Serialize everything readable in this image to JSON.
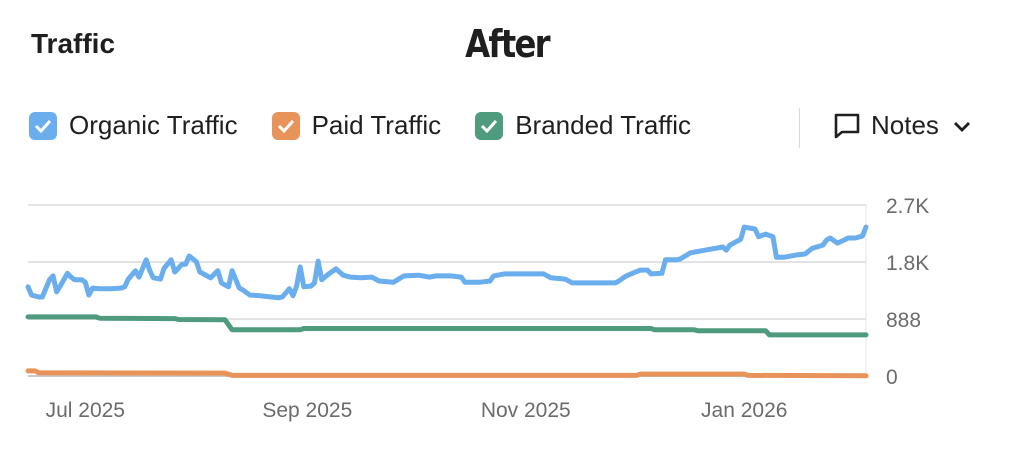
{
  "header": {
    "title": "Traffic",
    "overlay_label": "After"
  },
  "legend": [
    {
      "label": "Organic Traffic",
      "color": "#6aaeee",
      "checked": true,
      "icon": "check-icon"
    },
    {
      "label": "Paid Traffic",
      "color": "#e8935a",
      "checked": true,
      "icon": "check-icon"
    },
    {
      "label": "Branded Traffic",
      "color": "#4f9b7e",
      "checked": true,
      "icon": "check-icon"
    }
  ],
  "notes": {
    "label": "Notes",
    "icon": "comment-icon",
    "chevron": "chevron-down-icon"
  },
  "chart_data": {
    "type": "line",
    "title": "Traffic",
    "x_unit": "days since 2025-06-15",
    "xlim": [
      0,
      234
    ],
    "ylim": [
      0,
      2664
    ],
    "y_ticks": [
      {
        "value": 0,
        "label": "0"
      },
      {
        "value": 888,
        "label": "888"
      },
      {
        "value": 1776,
        "label": "1.8K"
      },
      {
        "value": 2664,
        "label": "2.7K"
      }
    ],
    "x_ticks": [
      {
        "value": 16,
        "label": "Jul 2025"
      },
      {
        "value": 78,
        "label": "Sep 2025"
      },
      {
        "value": 139,
        "label": "Nov 2025"
      },
      {
        "value": 200,
        "label": "Jan 2026"
      }
    ],
    "grid": true,
    "legend_position": "top-left",
    "series": [
      {
        "name": "Organic Traffic",
        "color": "#6aaeee",
        "points": [
          [
            0,
            1390
          ],
          [
            1,
            1260
          ],
          [
            3,
            1230
          ],
          [
            4,
            1230
          ],
          [
            6,
            1500
          ],
          [
            7,
            1560
          ],
          [
            8,
            1310
          ],
          [
            9,
            1400
          ],
          [
            11,
            1600
          ],
          [
            12,
            1540
          ],
          [
            13,
            1500
          ],
          [
            15,
            1500
          ],
          [
            16,
            1460
          ],
          [
            17,
            1260
          ],
          [
            18,
            1370
          ],
          [
            20,
            1360
          ],
          [
            23,
            1360
          ],
          [
            26,
            1370
          ],
          [
            27,
            1390
          ],
          [
            28,
            1510
          ],
          [
            30,
            1640
          ],
          [
            31,
            1540
          ],
          [
            33,
            1810
          ],
          [
            34,
            1640
          ],
          [
            35,
            1530
          ],
          [
            37,
            1510
          ],
          [
            38,
            1680
          ],
          [
            40,
            1810
          ],
          [
            41,
            1620
          ],
          [
            43,
            1740
          ],
          [
            44,
            1740
          ],
          [
            45,
            1870
          ],
          [
            47,
            1780
          ],
          [
            48,
            1620
          ],
          [
            51,
            1530
          ],
          [
            53,
            1640
          ],
          [
            54,
            1450
          ],
          [
            56,
            1390
          ],
          [
            57,
            1640
          ],
          [
            59,
            1370
          ],
          [
            60,
            1340
          ],
          [
            62,
            1260
          ],
          [
            65,
            1250
          ],
          [
            68,
            1230
          ],
          [
            70,
            1220
          ],
          [
            71,
            1230
          ],
          [
            73,
            1360
          ],
          [
            74,
            1250
          ],
          [
            75,
            1400
          ],
          [
            76,
            1700
          ],
          [
            77,
            1390
          ],
          [
            79,
            1400
          ],
          [
            80,
            1450
          ],
          [
            81,
            1790
          ],
          [
            82,
            1500
          ],
          [
            84,
            1590
          ],
          [
            86,
            1670
          ],
          [
            88,
            1570
          ],
          [
            90,
            1540
          ],
          [
            93,
            1530
          ],
          [
            96,
            1540
          ],
          [
            98,
            1480
          ],
          [
            102,
            1460
          ],
          [
            105,
            1560
          ],
          [
            109,
            1570
          ],
          [
            112,
            1540
          ],
          [
            114,
            1560
          ],
          [
            118,
            1560
          ],
          [
            121,
            1540
          ],
          [
            122,
            1460
          ],
          [
            126,
            1460
          ],
          [
            129,
            1480
          ],
          [
            130,
            1560
          ],
          [
            133,
            1590
          ],
          [
            144,
            1590
          ],
          [
            146,
            1530
          ],
          [
            150,
            1510
          ],
          [
            152,
            1450
          ],
          [
            160,
            1450
          ],
          [
            164,
            1450
          ],
          [
            165,
            1480
          ],
          [
            167,
            1560
          ],
          [
            171,
            1650
          ],
          [
            173,
            1650
          ],
          [
            174,
            1590
          ],
          [
            177,
            1600
          ],
          [
            178,
            1810
          ],
          [
            181,
            1810
          ],
          [
            182,
            1820
          ],
          [
            185,
            1920
          ],
          [
            188,
            1950
          ],
          [
            191,
            1980
          ],
          [
            194,
            2010
          ],
          [
            195,
            1960
          ],
          [
            196,
            2040
          ],
          [
            199,
            2130
          ],
          [
            200,
            2320
          ],
          [
            203,
            2290
          ],
          [
            204,
            2170
          ],
          [
            206,
            2210
          ],
          [
            208,
            2170
          ],
          [
            209,
            1850
          ],
          [
            211,
            1850
          ],
          [
            215,
            1890
          ],
          [
            217,
            1900
          ],
          [
            219,
            1990
          ],
          [
            222,
            2040
          ],
          [
            223,
            2120
          ],
          [
            224,
            2150
          ],
          [
            226,
            2070
          ],
          [
            228,
            2120
          ],
          [
            229,
            2150
          ],
          [
            231,
            2150
          ],
          [
            233,
            2180
          ],
          [
            234,
            2320
          ]
        ]
      },
      {
        "name": "Paid Traffic",
        "color": "#e8935a",
        "points": [
          [
            0,
            80
          ],
          [
            2,
            80
          ],
          [
            3,
            50
          ],
          [
            55,
            45
          ],
          [
            57,
            10
          ],
          [
            170,
            10
          ],
          [
            171,
            30
          ],
          [
            200,
            30
          ],
          [
            201,
            10
          ],
          [
            234,
            5
          ]
        ]
      },
      {
        "name": "Branded Traffic",
        "color": "#4f9b7e",
        "points": [
          [
            0,
            920
          ],
          [
            19,
            920
          ],
          [
            20,
            900
          ],
          [
            41,
            895
          ],
          [
            42,
            880
          ],
          [
            55,
            875
          ],
          [
            57,
            720
          ],
          [
            76,
            720
          ],
          [
            77,
            740
          ],
          [
            174,
            740
          ],
          [
            175,
            720
          ],
          [
            186,
            720
          ],
          [
            187,
            705
          ],
          [
            206,
            705
          ],
          [
            207,
            640
          ],
          [
            234,
            640
          ]
        ]
      }
    ]
  }
}
